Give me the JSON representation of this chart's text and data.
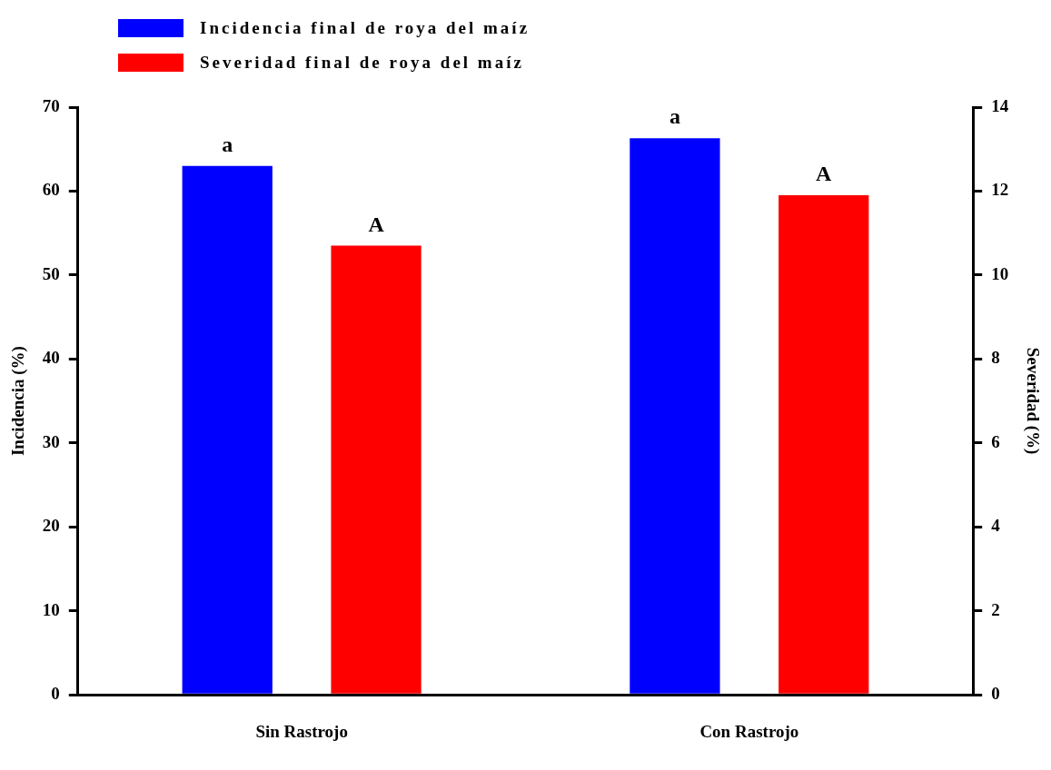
{
  "chart_data": {
    "type": "bar",
    "ylabel": "Incidencia (%)",
    "y2label": "Severidad (%)",
    "categories": [
      "Sin Rastrojo",
      "Con Rastrojo"
    ],
    "series": [
      {
        "name": "Incidencia final de roya del maíz",
        "color": "#0000ff",
        "values": [
          63.0,
          66.3
        ],
        "value_labels": [
          "a",
          "a"
        ]
      },
      {
        "name": "Severidad final de roya del maíz",
        "color": "#ff0000",
        "values": [
          10.7,
          11.9
        ],
        "axis": "y2",
        "value_labels": [
          "A",
          "A"
        ]
      }
    ],
    "ylim": [
      0,
      70
    ],
    "yticks": [
      0,
      10,
      20,
      30,
      40,
      50,
      60,
      70
    ],
    "y2lim": [
      0,
      14
    ],
    "y2ticks": [
      0,
      2,
      4,
      6,
      8,
      10,
      12,
      14
    ],
    "grid": false,
    "legend": "top left"
  }
}
